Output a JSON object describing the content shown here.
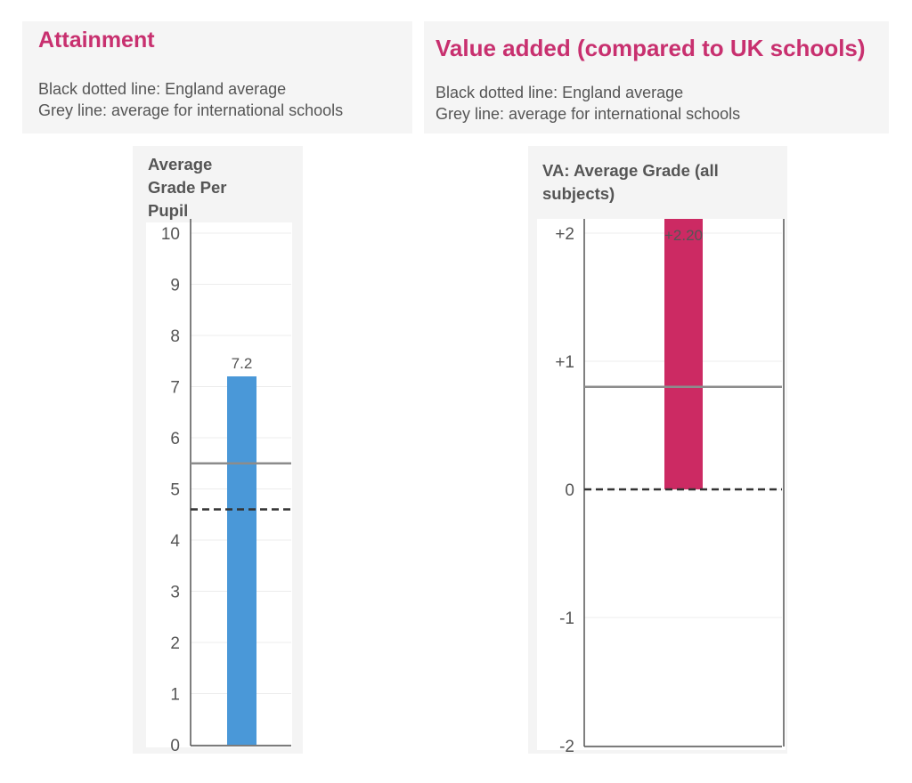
{
  "headers": {
    "attainment": {
      "title": "Attainment",
      "note_line1": "Black dotted line: England average",
      "note_line2": "Grey line: average for international schools"
    },
    "value_added": {
      "title": "Value added (compared to UK schools)",
      "note_line1": "Black dotted line: England average",
      "note_line2": "Grey line: average for international schools"
    }
  },
  "colors": {
    "accent": "#c8306f",
    "bar_attainment": "#4a98d8",
    "bar_value_added": "#cc2a63",
    "grey_line": "#8c8c8c",
    "dotted_line": "#333333"
  },
  "chart_data": [
    {
      "type": "bar",
      "title": "Average Grade Per Pupil",
      "categories": [
        ""
      ],
      "values": [
        7.2
      ],
      "value_labels": [
        "7.2"
      ],
      "ylim": [
        0,
        10
      ],
      "yticks": [
        0,
        1,
        2,
        3,
        4,
        5,
        6,
        7,
        8,
        9,
        10
      ],
      "ytick_labels": [
        "0",
        "1",
        "2",
        "3",
        "4",
        "5",
        "6",
        "7",
        "8",
        "9",
        "10"
      ],
      "reference_lines": {
        "international_schools_average": 5.5,
        "england_average": 4.6
      },
      "grid": true
    },
    {
      "type": "bar",
      "title": "VA: Average Grade (all subjects)",
      "categories": [
        ""
      ],
      "values": [
        2.2
      ],
      "value_labels": [
        "+2.20"
      ],
      "ylim": [
        -2,
        2
      ],
      "yticks": [
        -2,
        -1,
        0,
        1,
        2
      ],
      "ytick_labels": [
        "-2",
        "-1",
        "0",
        "+1",
        "+2"
      ],
      "reference_lines": {
        "international_schools_average": 0.8,
        "england_average": 0
      },
      "grid": true
    }
  ]
}
